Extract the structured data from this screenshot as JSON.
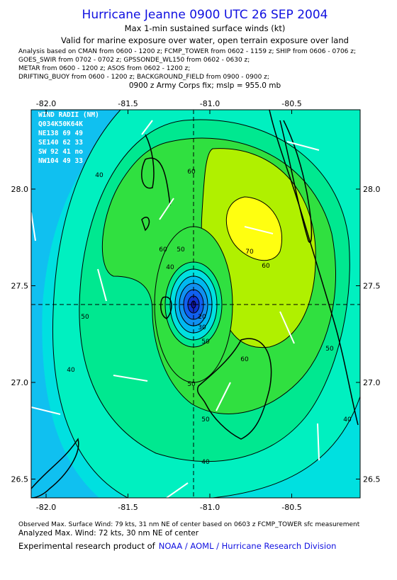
{
  "header": {
    "title": "Hurricane Jeanne 0900 UTC 26 SEP 2004",
    "subtitle": "Max 1-min sustained surface winds (kt)",
    "validity": "Valid for marine exposure over water, open terrain exposure over land",
    "analysis_lines": [
      "Analysis based on  CMAN from 0600 - 1200 z;  FCMP_TOWER from 0602 - 1159 z;  SHIP from 0606 - 0706 z;",
      "GOES_SWIR from 0702 - 0702 z;  GPSSONDE_WL150 from 0602 - 0630 z;",
      "METAR from 0600 - 1200 z;  ASOS from 0602 - 1200 z;",
      "DRIFTING_BUOY from 0600 - 1200 z;  BACKGROUND_FIELD from 0900 - 0900 z;"
    ],
    "fix": "0900 z Army Corps fix; mslp = 955.0 mb"
  },
  "map": {
    "xticks": [
      {
        "value": -82.0,
        "label": "-82.0"
      },
      {
        "value": -81.5,
        "label": "-81.5"
      },
      {
        "value": -81.0,
        "label": "-81.0"
      },
      {
        "value": -80.5,
        "label": "-80.5"
      }
    ],
    "yticks": [
      {
        "value": 28.0,
        "label": "28.0"
      },
      {
        "value": 27.5,
        "label": "27.5"
      },
      {
        "value": 27.0,
        "label": "27.0"
      },
      {
        "value": 26.5,
        "label": "26.5"
      }
    ],
    "wind_radii": [
      "WIND RADII (NM)",
      "Q034K50K64K",
      "NE138 69 49",
      "SE140 62 33",
      "SW 92 41 no",
      "NW104 49 33"
    ],
    "contour_labels": [
      40,
      60,
      60,
      60,
      50,
      70,
      50,
      40,
      50,
      60,
      50,
      40,
      50,
      40,
      30,
      20,
      40,
      50
    ]
  },
  "footer": {
    "observed": "Observed Max. Surface Wind: 79 kts, 31 nm NE of center based on 0603 z FCMP_TOWER sfc measurement",
    "analyzed": "Analyzed Max. Wind: 72 kts, 30 nm NE of center",
    "credit": "Experimental research product of",
    "org": "NOAA / AOML / Hurricane Research Division"
  }
}
